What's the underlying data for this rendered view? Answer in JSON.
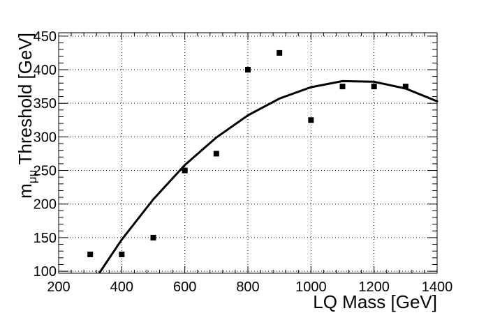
{
  "chart_data": {
    "type": "scatter",
    "title": "",
    "xlabel": "LQ Mass [GeV]",
    "ylabel": {
      "prefix": "m",
      "subscript": "μμ",
      "suffix": " Threshold [GeV]"
    },
    "xlim": [
      200,
      1400
    ],
    "ylim": [
      97,
      455
    ],
    "xticks": [
      200,
      400,
      600,
      800,
      1000,
      1200,
      1400
    ],
    "yticks": [
      100,
      150,
      200,
      250,
      300,
      350,
      400,
      450
    ],
    "grid": true,
    "legend": "none",
    "series": [
      {
        "kind": "points",
        "marker": "square",
        "x": [
          300,
          400,
          500,
          600,
          700,
          800,
          900,
          1000,
          1100,
          1200,
          1300
        ],
        "y": [
          125,
          125,
          150,
          250,
          275,
          400,
          425,
          325,
          375,
          375,
          375
        ]
      },
      {
        "kind": "fit-curve",
        "x": [
          330,
          400,
          500,
          600,
          700,
          800,
          900,
          1000,
          1100,
          1200,
          1300,
          1400
        ],
        "y": [
          98,
          147,
          207,
          258,
          299,
          332,
          357,
          374,
          383,
          382,
          372,
          353
        ]
      }
    ],
    "colors": {
      "markers": "#000000",
      "curve": "#000000",
      "grid": "#000000",
      "frame": "#000000"
    }
  }
}
